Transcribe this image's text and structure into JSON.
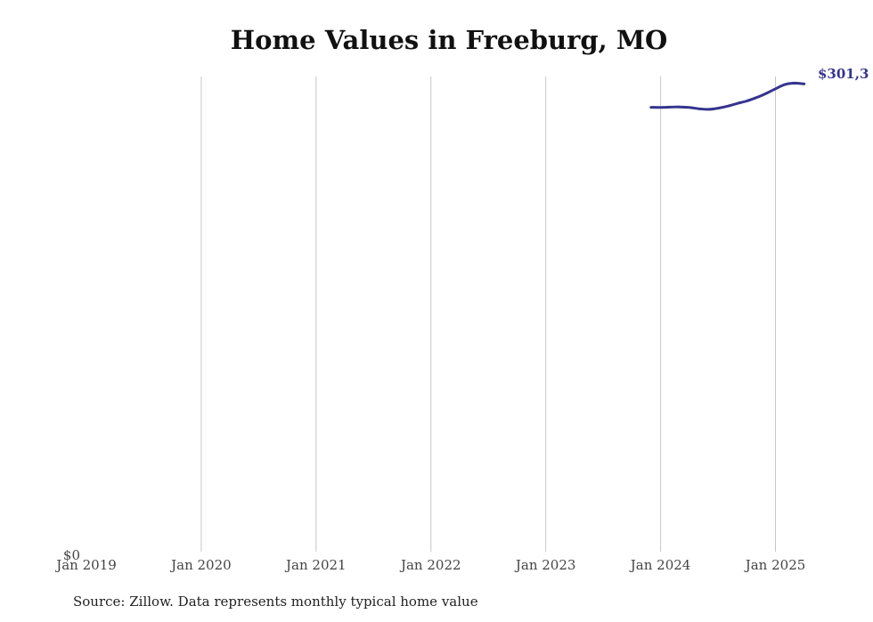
{
  "chart_data": {
    "type": "line",
    "title": "Home Values in Freeburg, MO",
    "xlabel": "",
    "ylabel": "",
    "x_ticks": [
      "Jan 2019",
      "Jan 2020",
      "Jan 2021",
      "Jan 2022",
      "Jan 2023",
      "Jan 2024",
      "Jan 2025"
    ],
    "y_ticks": [
      "$0"
    ],
    "xlim": [
      "2019-01",
      "2025-04"
    ],
    "ylim": [
      0,
      301300
    ],
    "grid": "vertical",
    "line_color": "#35348f",
    "end_label": "$301,3",
    "series": [
      {
        "points": [
          {
            "x": "2023-12",
            "y": 281800
          },
          {
            "x": "2024-01",
            "y": 281700
          },
          {
            "x": "2024-02",
            "y": 281900
          },
          {
            "x": "2024-03",
            "y": 282000
          },
          {
            "x": "2024-04",
            "y": 281700
          },
          {
            "x": "2024-05",
            "y": 280900
          },
          {
            "x": "2024-06",
            "y": 280500
          },
          {
            "x": "2024-07",
            "y": 281200
          },
          {
            "x": "2024-08",
            "y": 282500
          },
          {
            "x": "2024-09",
            "y": 284200
          },
          {
            "x": "2024-10",
            "y": 285800
          },
          {
            "x": "2024-11",
            "y": 287900
          },
          {
            "x": "2024-12",
            "y": 290500
          },
          {
            "x": "2025-01",
            "y": 293500
          },
          {
            "x": "2025-02",
            "y": 296300
          },
          {
            "x": "2025-03",
            "y": 297100
          },
          {
            "x": "2025-04",
            "y": 296600
          }
        ]
      }
    ]
  },
  "source_note": "Source: Zillow. Data represents monthly typical home value"
}
